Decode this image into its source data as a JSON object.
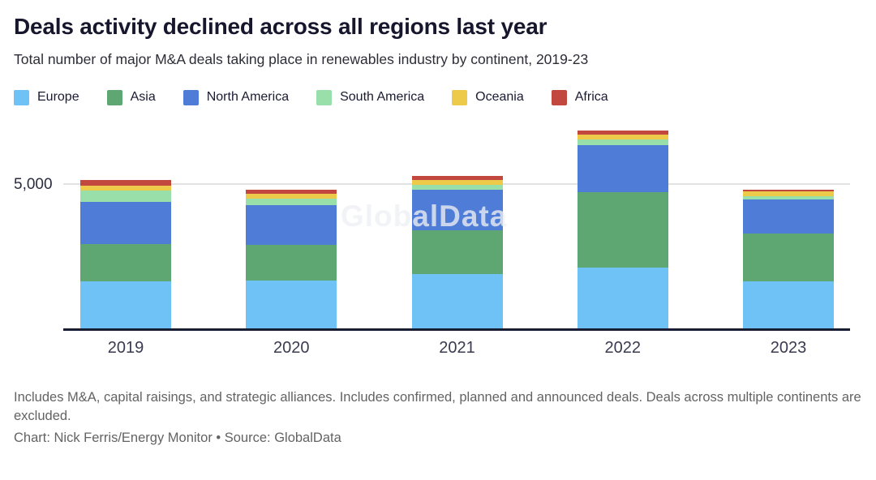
{
  "header": {
    "title": "Deals activity declined across all regions last year",
    "subtitle": "Total number of major M&A deals taking place in renewables industry by continent, 2019-23"
  },
  "chart_data": {
    "type": "bar",
    "stacked": true,
    "title": "Deals activity declined across all regions last year",
    "subtitle": "Total number of major M&A deals taking place in renewables industry by continent, 2019-23",
    "categories": [
      "2019",
      "2020",
      "2021",
      "2022",
      "2023"
    ],
    "series": [
      {
        "name": "Europe",
        "color": "#6ec2f5",
        "values": [
          1640,
          1670,
          1890,
          2100,
          1640
        ]
      },
      {
        "name": "Asia",
        "color": "#5fa772",
        "values": [
          1280,
          1230,
          1510,
          2650,
          1640
        ]
      },
      {
        "name": "North America",
        "color": "#4e7cd7",
        "values": [
          1490,
          1380,
          1420,
          1620,
          1210
        ]
      },
      {
        "name": "South America",
        "color": "#98dfaa",
        "values": [
          380,
          230,
          170,
          210,
          110
        ]
      },
      {
        "name": "Oceania",
        "color": "#edca49",
        "values": [
          170,
          170,
          170,
          170,
          150
        ]
      },
      {
        "name": "Africa",
        "color": "#c2473f",
        "values": [
          210,
          130,
          130,
          150,
          80
        ]
      }
    ],
    "totals_estimated": [
      5170,
      4810,
      5290,
      6900,
      4830
    ],
    "y_axis": {
      "tick_label": "5,000",
      "tick_value": 5000
    },
    "ylim": [
      0,
      7260
    ],
    "grid": "single horizontal gridline at 5000",
    "legend_position": "top-left",
    "watermark": "GlobalData"
  },
  "footer": {
    "note": "Includes M&A, capital raisings, and strategic alliances. Includes confirmed, planned and announced deals. Deals across multiple continents are excluded.",
    "credit": "Chart: Nick Ferris/Energy Monitor • Source: GlobalData"
  }
}
